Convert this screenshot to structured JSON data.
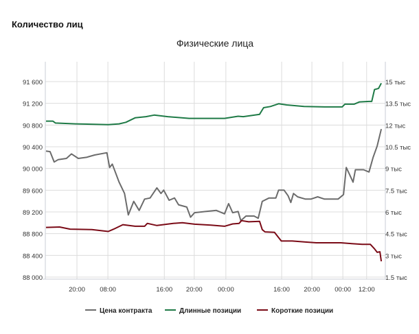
{
  "page_title": "Количество лиц",
  "chart_data": {
    "type": "line",
    "title": "Физические лица",
    "x_range": [
      0,
      100
    ],
    "x_ticks": [
      {
        "x": 9.3,
        "label": "20:00"
      },
      {
        "x": 18.4,
        "label": "08:00"
      },
      {
        "x": 35.0,
        "label": "16:00"
      },
      {
        "x": 43.8,
        "label": "20:00"
      },
      {
        "x": 53.1,
        "label": "00:00"
      },
      {
        "x": 69.5,
        "label": "16:00"
      },
      {
        "x": 78.4,
        "label": "20:00"
      },
      {
        "x": 87.5,
        "label": "00:00"
      },
      {
        "x": 94.5,
        "label": "12:00"
      }
    ],
    "y_left": {
      "range": [
        88000,
        91600
      ],
      "ticks": [
        {
          "v": 88000,
          "label": "88 000"
        },
        {
          "v": 88400,
          "label": "88 400"
        },
        {
          "v": 88800,
          "label": "88 800"
        },
        {
          "v": 89200,
          "label": "89 200"
        },
        {
          "v": 89600,
          "label": "89 600"
        },
        {
          "v": 90000,
          "label": "90 000"
        },
        {
          "v": 90400,
          "label": "90 400"
        },
        {
          "v": 90800,
          "label": "90 800"
        },
        {
          "v": 91200,
          "label": "91 200"
        },
        {
          "v": 91600,
          "label": "91 600"
        }
      ]
    },
    "y_right": {
      "range": [
        1.5,
        15
      ],
      "unit": "тыс",
      "ticks": [
        {
          "v": 1.5,
          "label": "1.5 тыс"
        },
        {
          "v": 3,
          "label": "3 тыс"
        },
        {
          "v": 4.5,
          "label": "4.5 тыс"
        },
        {
          "v": 6,
          "label": "6 тыс"
        },
        {
          "v": 7.5,
          "label": "7.5 тыс"
        },
        {
          "v": 9,
          "label": "9 тыс"
        },
        {
          "v": 10.5,
          "label": "10.5 тыс"
        },
        {
          "v": 12,
          "label": "12 тыс"
        },
        {
          "v": 13.5,
          "label": "13.5 тыс"
        },
        {
          "v": 15,
          "label": "15 тыс"
        }
      ]
    },
    "series": [
      {
        "name": "Цена контракта",
        "axis": "left",
        "color": "#6b6b6b",
        "x": [
          0.2,
          1.4,
          2.6,
          3.8,
          6.2,
          7.7,
          9.7,
          12.1,
          14.5,
          18.1,
          18.9,
          19.7,
          21.7,
          23.3,
          24.4,
          26,
          27.6,
          29.2,
          30.8,
          32.8,
          34,
          34.8,
          36.4,
          38,
          39.2,
          41.6,
          42.7,
          43.9,
          47.1,
          50.3,
          52.7,
          53.9,
          55.1,
          56.7,
          57.5,
          59,
          61.4,
          62.6,
          63.8,
          65.8,
          67.8,
          68.6,
          70.2,
          71.4,
          72.2,
          73,
          74.2,
          76.5,
          78.1,
          80.1,
          82.1,
          86.1,
          87.7,
          88.5,
          89.3,
          90.5,
          91.2,
          93.6,
          95.2,
          96.4,
          97.6,
          98.8
        ],
        "y": [
          90322,
          90310,
          90120,
          90164,
          90185,
          90268,
          90185,
          90206,
          90248,
          90290,
          90019,
          90081,
          89748,
          89540,
          89145,
          89394,
          89228,
          89436,
          89457,
          89644,
          89540,
          89602,
          89415,
          89457,
          89332,
          89290,
          89103,
          89186,
          89207,
          89228,
          89165,
          89353,
          89186,
          89207,
          89040,
          89124,
          89124,
          89082,
          89394,
          89457,
          89457,
          89602,
          89602,
          89498,
          89374,
          89540,
          89478,
          89436,
          89436,
          89478,
          89436,
          89436,
          89519,
          90019,
          89915,
          89748,
          89977,
          89977,
          89935,
          90206,
          90414,
          90726
        ]
      },
      {
        "name": "Длинные позиции",
        "axis": "right",
        "color": "#1e7a46",
        "x": [
          0.2,
          2.2,
          3,
          8.9,
          18.5,
          21.7,
          23.7,
          26.4,
          29.6,
          32,
          36,
          42.3,
          47.1,
          52.7,
          56.7,
          58.2,
          63,
          64.2,
          66.2,
          68.6,
          71,
          76.1,
          82.1,
          87.3,
          88.1,
          90.8,
          92.4,
          95.2,
          96,
          96.8,
          98,
          98.8
        ],
        "y": [
          12.27,
          12.27,
          12.14,
          12.08,
          12.03,
          12.08,
          12.19,
          12.5,
          12.58,
          12.69,
          12.58,
          12.46,
          12.46,
          12.46,
          12.61,
          12.58,
          12.74,
          13.2,
          13.28,
          13.47,
          13.39,
          13.28,
          13.25,
          13.25,
          13.44,
          13.44,
          13.6,
          13.63,
          13.63,
          14.45,
          14.53,
          14.89
        ]
      },
      {
        "name": "Короткие позиции",
        "axis": "right",
        "color": "#7a0a16",
        "x": [
          0.2,
          4.2,
          7.3,
          13.7,
          18.5,
          20.1,
          22.8,
          26.4,
          29.2,
          30,
          32.8,
          37.6,
          40.3,
          43.9,
          48.7,
          52.7,
          55.1,
          57,
          57.7,
          59.8,
          63,
          63.8,
          64.6,
          67.4,
          69.4,
          72.6,
          76.5,
          79.7,
          86.9,
          90.1,
          93.2,
          95.6,
          96.8,
          97.6,
          98.4,
          98.8
        ],
        "y": [
          4.93,
          4.96,
          4.81,
          4.78,
          4.65,
          4.81,
          5.12,
          5.01,
          5.01,
          5.21,
          5.06,
          5.21,
          5.25,
          5.15,
          5.09,
          5.01,
          5.17,
          5.21,
          5.4,
          5.32,
          5.35,
          4.78,
          4.62,
          4.59,
          3.99,
          3.99,
          3.92,
          3.87,
          3.87,
          3.81,
          3.76,
          3.76,
          3.45,
          3.21,
          3.25,
          2.59
        ]
      }
    ],
    "legend": {
      "position": "bottom"
    },
    "grid": true
  }
}
